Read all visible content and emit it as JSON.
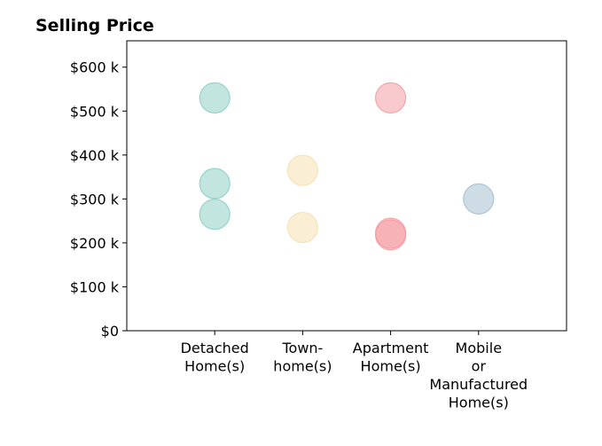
{
  "chart_data": {
    "type": "scatter",
    "title": "Selling Price",
    "xlabel": "",
    "ylabel": "",
    "categories": [
      [
        "Detached",
        "Home(s)"
      ],
      [
        "Town-",
        "home(s)"
      ],
      [
        "Apartment",
        "Home(s)"
      ],
      [
        "Mobile",
        "or",
        "Manufactured",
        "Home(s)"
      ]
    ],
    "xlim": [
      0,
      5
    ],
    "ylim": [
      0,
      660000
    ],
    "y_ticks": [
      0,
      100000,
      200000,
      300000,
      400000,
      500000,
      600000
    ],
    "y_tick_labels": [
      "$0",
      "$100 k",
      "$200 k",
      "$300 k",
      "$400 k",
      "$500 k",
      "$600 k"
    ],
    "grid": false,
    "points": [
      {
        "x": 1,
        "y": 530000,
        "color": "#8fd0c6"
      },
      {
        "x": 1,
        "y": 335000,
        "color": "#8fd0c6"
      },
      {
        "x": 1,
        "y": 265000,
        "color": "#8fd0c6"
      },
      {
        "x": 2,
        "y": 365000,
        "color": "#f6e1b3"
      },
      {
        "x": 2,
        "y": 235000,
        "color": "#f6e1b3"
      },
      {
        "x": 3,
        "y": 530000,
        "color": "#f49ea4"
      },
      {
        "x": 3,
        "y": 222000,
        "color": "#f49ea4"
      },
      {
        "x": 3,
        "y": 218000,
        "color": "#f49ea4"
      },
      {
        "x": 4,
        "y": 300000,
        "color": "#a6bfd2"
      }
    ]
  }
}
